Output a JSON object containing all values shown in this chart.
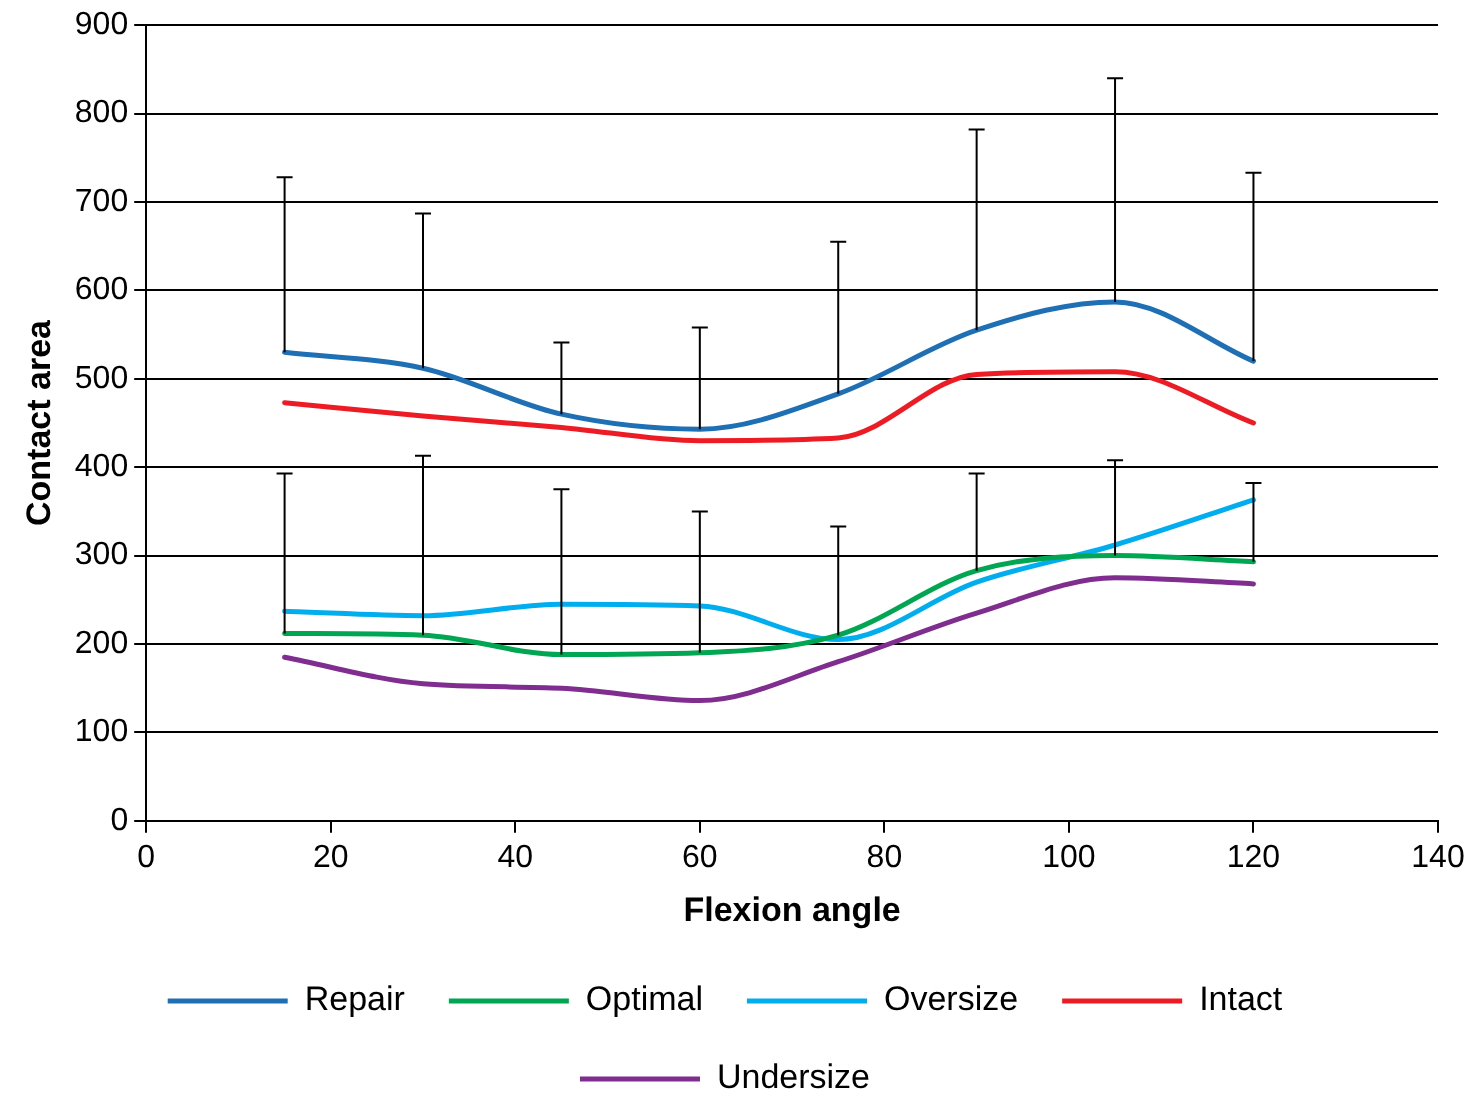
{
  "chart_data": {
    "type": "line",
    "xlabel": "Flexion angle",
    "ylabel": "Contact area",
    "x": [
      15,
      30,
      45,
      60,
      75,
      90,
      105,
      120
    ],
    "xlim": [
      0,
      140
    ],
    "xticks": [
      0,
      20,
      40,
      60,
      80,
      100,
      120,
      140
    ],
    "ylim": [
      0,
      900
    ],
    "yticks": [
      0,
      100,
      200,
      300,
      400,
      500,
      600,
      700,
      800,
      900
    ],
    "grid": "y",
    "legend": "bottom",
    "marker": "none",
    "line_style": "solid",
    "series": [
      {
        "name": "Repair",
        "color": "#1f6fb4",
        "values": [
          530,
          512,
          460,
          443,
          483,
          555,
          587,
          520
        ],
        "errors": [
          [
            530,
            728
          ],
          [
            512,
            687
          ],
          [
            460,
            541
          ],
          [
            443,
            558
          ],
          [
            483,
            655
          ],
          [
            555,
            782
          ],
          [
            587,
            840
          ],
          [
            520,
            733
          ]
        ]
      },
      {
        "name": "Optimal",
        "color": "#00a651",
        "values": [
          212,
          210,
          188,
          190,
          210,
          283,
          300,
          293
        ],
        "errors": [
          [
            212,
            393
          ],
          [
            210,
            413
          ],
          [
            188,
            375
          ],
          [
            190,
            350
          ],
          [
            210,
            333
          ],
          [
            283,
            393
          ],
          [
            300,
            408
          ],
          [
            293,
            382
          ]
        ]
      },
      {
        "name": "Oversize",
        "color": "#00aeef",
        "values": [
          237,
          232,
          245,
          243,
          205,
          270,
          312,
          363
        ]
      },
      {
        "name": "Intact",
        "color": "#ed1c24",
        "values": [
          473,
          458,
          445,
          430,
          433,
          505,
          508,
          450
        ]
      },
      {
        "name": "Undersize",
        "color": "#7f2d8f",
        "values": [
          185,
          155,
          150,
          136,
          180,
          235,
          275,
          268
        ]
      }
    ]
  }
}
